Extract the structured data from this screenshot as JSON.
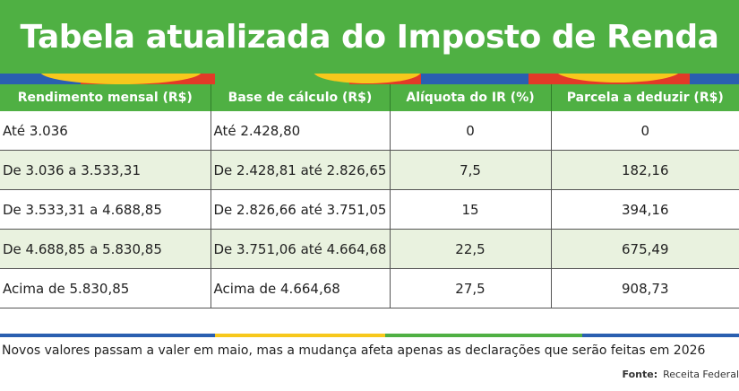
{
  "title": "Tabela atualizada do Imposto de Renda",
  "colors": {
    "green": "#4fb043",
    "yellow": "#f7c81c",
    "red": "#e23a28",
    "blue": "#2a5fb0",
    "row_alt": "#e9f2df"
  },
  "table": {
    "headers": [
      "Rendimento mensal (R$)",
      "Base de cálculo (R$)",
      "Alíquota do IR (%)",
      "Parcela a deduzir (R$)"
    ],
    "rows": [
      [
        "Até 3.036",
        "Até 2.428,80",
        "0",
        "0"
      ],
      [
        "De 3.036 a 3.533,31",
        "De 2.428,81 até 2.826,65",
        "7,5",
        "182,16"
      ],
      [
        "De 3.533,31 a 4.688,85",
        "De 2.826,66 até 3.751,05",
        "15",
        "394,16"
      ],
      [
        "De 4.688,85 a 5.830,85",
        "De 3.751,06 até 4.664,68",
        "22,5",
        "675,49"
      ],
      [
        "Acima de 5.830,85",
        "Acima de 4.664,68",
        "27,5",
        "908,73"
      ]
    ]
  },
  "note": "Novos valores passam a valer em maio, mas a mudança afeta apenas as declarações que serão feitas em 2026",
  "source": {
    "label": "Fonte:",
    "value": "Receita Federal"
  }
}
